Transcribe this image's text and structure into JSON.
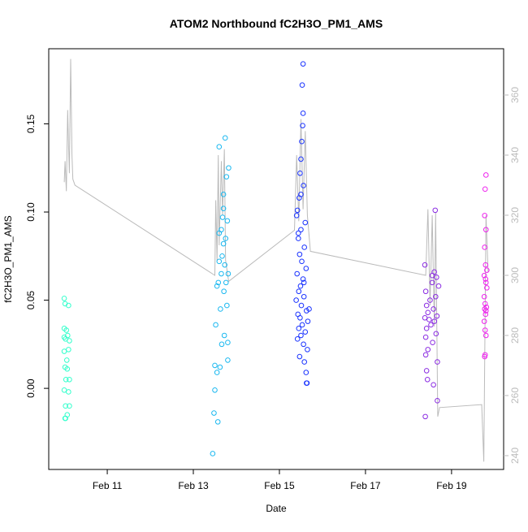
{
  "chart_data": {
    "type": "scatter",
    "title": "ATOM2 Northbound fC2H3O_PM1_AMS",
    "x_label": "Date",
    "y_label": "fC2H3O_PM1_AMS",
    "xlim": [
      9.64,
      20.21
    ],
    "ylim": [
      -0.046,
      0.1926
    ],
    "y2lim": [
      235.4,
      375.4
    ],
    "xticks": [
      {
        "value": 11,
        "label": "Feb 11"
      },
      {
        "value": 13,
        "label": "Feb 13"
      },
      {
        "value": 15,
        "label": "Feb 15"
      },
      {
        "value": 17,
        "label": "Feb 17"
      },
      {
        "value": 19,
        "label": "Feb 19"
      }
    ],
    "yticks": [
      {
        "value": 0,
        "label": "0.00"
      },
      {
        "value": 0.05,
        "label": "0.05"
      },
      {
        "value": 0.1,
        "label": "0.10"
      },
      {
        "value": 0.15,
        "label": "0.15"
      }
    ],
    "y2ticks": [
      240,
      260,
      280,
      300,
      320,
      340,
      360
    ],
    "series": [
      {
        "color": "#bbbbbb",
        "axis": "y2",
        "x": [
          10.0,
          10.02,
          10.05,
          10.08,
          10.1,
          10.12,
          10.15,
          10.18,
          10.2,
          10.25,
          13.5,
          13.52,
          13.55,
          13.58,
          13.6,
          13.65,
          13.68,
          13.72,
          13.75,
          13.8,
          13.82,
          15.35,
          15.4,
          15.45,
          15.5,
          15.55,
          15.6,
          15.65,
          15.72,
          18.4,
          18.45,
          18.5,
          18.55,
          18.6,
          18.63,
          18.68,
          18.72,
          19.7,
          19.75,
          19.8,
          19.85
        ],
        "values": [
          331,
          338,
          328,
          355,
          343,
          334,
          372,
          340,
          332,
          330,
          300,
          325,
          305,
          340,
          310,
          338,
          320,
          342,
          305,
          300,
          298,
          315,
          340,
          318,
          352,
          322,
          348,
          320,
          308,
          300,
          322,
          290,
          320,
          283,
          321,
          253,
          256,
          257,
          238,
          320,
          301
        ]
      },
      {
        "color": "#33ffcc",
        "x": [
          10.0,
          10.02,
          10.0,
          10.05,
          10.0,
          10.03,
          10.12,
          10.1,
          10.0,
          10.06,
          10.02,
          10.07,
          10.04,
          10.12,
          10.0,
          10.1,
          10.03,
          10.12,
          10.07,
          10.02,
          10.03,
          10.08,
          10.1
        ],
        "values": [
          0.051,
          0.048,
          0.034,
          0.033,
          0.029,
          0.028,
          0.027,
          0.022,
          0.021,
          0.016,
          0.012,
          0.011,
          0.005,
          0.005,
          -0.001,
          -0.002,
          -0.01,
          -0.01,
          -0.015,
          -0.017,
          -0.017,
          0.03,
          0.047
        ]
      },
      {
        "color": "#1ab8f0",
        "x": [
          13.45,
          13.48,
          13.5,
          13.52,
          13.55,
          13.57,
          13.58,
          13.6,
          13.6,
          13.62,
          13.63,
          13.65,
          13.65,
          13.66,
          13.67,
          13.68,
          13.7,
          13.7,
          13.71,
          13.72,
          13.73,
          13.74,
          13.75,
          13.76,
          13.77,
          13.78,
          13.79,
          13.8,
          13.8,
          13.81,
          13.82,
          13.5,
          13.55,
          13.6,
          13.7
        ],
        "values": [
          -0.037,
          -0.014,
          -0.001,
          0.036,
          0.009,
          -0.019,
          0.06,
          0.088,
          0.137,
          0.012,
          0.045,
          0.09,
          0.065,
          0.025,
          0.075,
          0.097,
          0.11,
          0.082,
          0.055,
          0.03,
          0.07,
          0.142,
          0.085,
          0.06,
          0.12,
          0.047,
          0.095,
          0.026,
          0.016,
          0.065,
          0.125,
          0.013,
          0.058,
          0.072,
          0.102
        ]
      },
      {
        "color": "#1a33ff",
        "x": [
          15.55,
          15.53,
          15.55,
          15.54,
          15.52,
          15.5,
          15.48,
          15.56,
          15.46,
          15.42,
          15.4,
          15.6,
          15.5,
          15.44,
          15.58,
          15.47,
          15.52,
          15.62,
          15.41,
          15.55,
          15.49,
          15.45,
          15.57,
          15.39,
          15.51,
          15.63,
          15.43,
          15.48,
          15.66,
          15.53,
          15.45,
          15.6,
          15.5,
          15.42,
          15.56,
          15.65,
          15.47,
          15.58,
          15.62,
          15.63,
          15.64,
          15.5,
          15.44,
          15.57,
          15.69
        ],
        "values": [
          0.184,
          0.172,
          0.156,
          0.149,
          0.14,
          0.13,
          0.122,
          0.115,
          0.108,
          0.101,
          0.098,
          0.094,
          0.09,
          0.085,
          0.08,
          0.076,
          0.072,
          0.068,
          0.065,
          0.062,
          0.058,
          0.055,
          0.052,
          0.05,
          0.047,
          0.044,
          0.042,
          0.04,
          0.038,
          0.036,
          0.034,
          0.032,
          0.03,
          0.028,
          0.025,
          0.022,
          0.018,
          0.015,
          0.009,
          0.003,
          0.003,
          0.11,
          0.088,
          0.06,
          0.045
        ]
      },
      {
        "color": "#8a2be2",
        "x": [
          18.62,
          18.38,
          18.6,
          18.65,
          18.55,
          18.7,
          18.4,
          18.63,
          18.5,
          18.42,
          18.58,
          18.45,
          18.66,
          18.38,
          18.6,
          18.52,
          18.42,
          18.64,
          18.4,
          18.56,
          18.45,
          18.4,
          18.67,
          18.42,
          18.44,
          18.58,
          18.67,
          18.39,
          18.55,
          18.48
        ],
        "values": [
          0.101,
          0.07,
          0.066,
          0.063,
          0.06,
          0.058,
          0.055,
          0.052,
          0.05,
          0.047,
          0.045,
          0.043,
          0.041,
          0.04,
          0.038,
          0.036,
          0.034,
          0.031,
          0.029,
          0.026,
          0.022,
          0.019,
          0.015,
          0.01,
          0.005,
          0.002,
          -0.007,
          -0.016,
          0.064,
          0.039
        ]
      },
      {
        "color": "#ee22ee",
        "x": [
          19.8,
          19.78,
          19.77,
          19.8,
          19.77,
          19.79,
          19.82,
          19.76,
          19.79,
          19.8,
          19.82,
          19.76,
          19.78,
          19.81,
          19.77,
          19.8,
          19.79,
          19.76,
          19.78,
          19.8,
          19.77,
          19.78
        ],
        "values": [
          0.121,
          0.113,
          0.098,
          0.09,
          0.08,
          0.07,
          0.067,
          0.064,
          0.062,
          0.06,
          0.057,
          0.052,
          0.048,
          0.046,
          0.045,
          0.044,
          0.042,
          0.038,
          0.033,
          0.03,
          0.018,
          0.019
        ]
      }
    ]
  }
}
